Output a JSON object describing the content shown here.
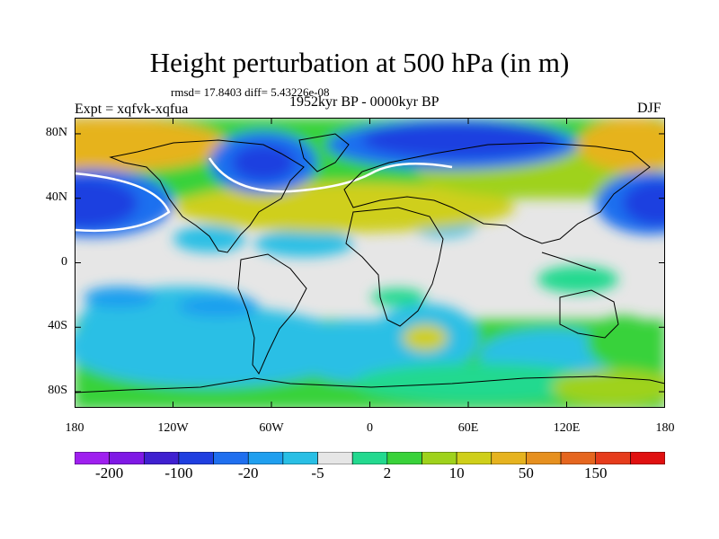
{
  "title": "Height perturbation at 500 hPa (in m)",
  "stats": "rmsd= 17.8403 diff= 5.43226e-08",
  "experiment": "Expt = xqfvk-xqfua",
  "period": "1952kyr BP - 0000kyr BP",
  "season": "DJF",
  "map": {
    "lat_ticks": [
      {
        "value": 80,
        "label": "80N"
      },
      {
        "value": 40,
        "label": "40N"
      },
      {
        "value": 0,
        "label": "0"
      },
      {
        "value": -40,
        "label": "40S"
      },
      {
        "value": -80,
        "label": "80S"
      }
    ],
    "lon_ticks": [
      {
        "value": -180,
        "label": "180"
      },
      {
        "value": -120,
        "label": "120W"
      },
      {
        "value": -60,
        "label": "60W"
      },
      {
        "value": 0,
        "label": "0"
      },
      {
        "value": 60,
        "label": "60E"
      },
      {
        "value": 120,
        "label": "120E"
      },
      {
        "value": 180,
        "label": "180"
      }
    ],
    "lon_range": [
      -180,
      180
    ],
    "lat_range": [
      -90,
      90
    ]
  },
  "colorbar": {
    "colors": [
      "#9f1fef",
      "#7f19e5",
      "#3f20d0",
      "#1f3fe0",
      "#1f6fef",
      "#1f9fef",
      "#29bfe5",
      "#e6e6e6",
      "#23d98f",
      "#39d23a",
      "#9fd21c",
      "#cfcf1a",
      "#e6b31f",
      "#e6901f",
      "#e5661f",
      "#e63c1c",
      "#e01010"
    ],
    "labels": [
      {
        "boundary": 1,
        "text": "-200"
      },
      {
        "boundary": 3,
        "text": "-100"
      },
      {
        "boundary": 5,
        "text": "-20"
      },
      {
        "boundary": 7,
        "text": "-5"
      },
      {
        "boundary": 9,
        "text": "2"
      },
      {
        "boundary": 11,
        "text": "10"
      },
      {
        "boundary": 13,
        "text": "50"
      },
      {
        "boundary": 15,
        "text": "150"
      }
    ]
  }
}
